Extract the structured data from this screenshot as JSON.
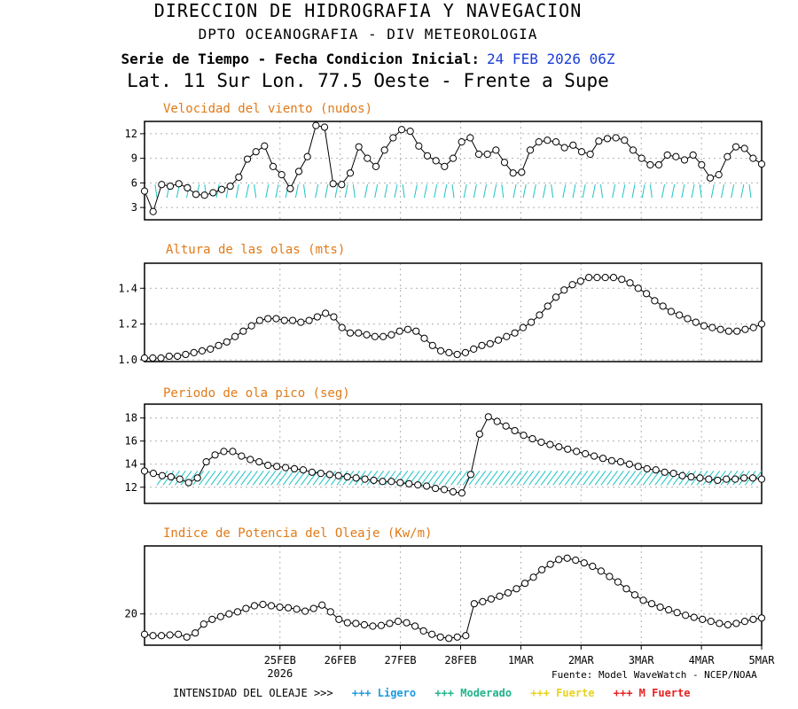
{
  "header": {
    "line1": "DIRECCION DE HIDROGRAFIA Y NAVEGACION",
    "line2": "DPTO OCEANOGRAFIA - DIV METEOROLOGIA",
    "line3_label": "Serie de Tiempo - Fecha Condicion Inicial:",
    "line3_date": "24 FEB 2026 06Z",
    "line4": "Lat. 11 Sur  Lon. 77.5 Oeste - Frente a Supe",
    "date_color": "#1a3cd8"
  },
  "source": "Fuente: Model WaveWatch - NCEP/NOAA",
  "legend": {
    "intro": "INTENSIDAD DEL OLEAJE >>>",
    "items": [
      {
        "label": "+++ Ligero",
        "color": "#1e9be0"
      },
      {
        "label": "+++ Moderado",
        "color": "#1fb38a"
      },
      {
        "label": "+++ Fuerte",
        "color": "#e8d21c"
      },
      {
        "label": "+++ M Fuerte",
        "color": "#e82020"
      }
    ]
  },
  "colors": {
    "title": "#e07a18",
    "arrows": "#1fc4c4",
    "line": "#000000",
    "grid": "#b0b0b0"
  },
  "chart_data": [
    {
      "type": "line",
      "title": "Velocidad del viento (nudos)",
      "x": [
        "24FEB06",
        "24FEB09",
        "24FEB12",
        "24FEB15",
        "24FEB18",
        "24FEB21",
        "25FEB00",
        "25FEB03",
        "25FEB06",
        "25FEB09",
        "25FEB12",
        "25FEB15",
        "25FEB18",
        "25FEB21",
        "26FEB00",
        "26FEB03",
        "26FEB06",
        "26FEB09",
        "26FEB12",
        "26FEB15",
        "26FEB18",
        "26FEB21",
        "27FEB00",
        "27FEB03",
        "27FEB06",
        "27FEB09",
        "27FEB12",
        "27FEB15",
        "27FEB18",
        "27FEB21",
        "28FEB00",
        "28FEB03",
        "28FEB06",
        "28FEB09",
        "28FEB12",
        "28FEB15",
        "28FEB18",
        "28FEB21",
        "01MAR00",
        "01MAR03",
        "01MAR06",
        "01MAR09",
        "01MAR12",
        "01MAR15",
        "01MAR18",
        "01MAR21",
        "02MAR00",
        "02MAR03",
        "02MAR06",
        "02MAR09",
        "02MAR12",
        "02MAR15",
        "02MAR18",
        "02MAR21",
        "03MAR00",
        "03MAR03",
        "03MAR06",
        "03MAR09",
        "03MAR12",
        "03MAR15",
        "03MAR18",
        "03MAR21",
        "04MAR00",
        "04MAR03",
        "04MAR06",
        "04MAR09",
        "04MAR12",
        "04MAR15",
        "04MAR18",
        "04MAR21",
        "05MAR00",
        "05MAR03",
        "05MAR06"
      ],
      "values": [
        5.0,
        2.5,
        5.8,
        5.6,
        5.9,
        5.4,
        4.6,
        4.5,
        4.8,
        5.2,
        5.6,
        6.7,
        8.9,
        9.8,
        10.5,
        8.0,
        7.0,
        5.3,
        7.4,
        9.2,
        13.0,
        12.8,
        5.9,
        5.8,
        7.2,
        10.4,
        9.0,
        8.0,
        10.0,
        11.5,
        12.5,
        12.3,
        10.5,
        9.3,
        8.7,
        8.0,
        9.0,
        11.0,
        11.5,
        9.5,
        9.5,
        10.0,
        8.5,
        7.2,
        7.3,
        10.0,
        11.0,
        11.2,
        11.0,
        10.3,
        10.6,
        9.8,
        9.5,
        11.1,
        11.4,
        11.5,
        11.2,
        10.0,
        9.0,
        8.2,
        8.2,
        9.4,
        9.2,
        8.8,
        9.4,
        8.2,
        6.6,
        7.0,
        9.2,
        10.4,
        10.2,
        9.0,
        8.3
      ],
      "xticks": [
        "25FEB",
        "26FEB",
        "27FEB",
        "28FEB",
        "1MAR",
        "2MAR",
        "3MAR",
        "4MAR",
        "5MAR"
      ],
      "xtick_year": "2026",
      "yticks": [
        3,
        6,
        9,
        12
      ],
      "ylim": [
        1.5,
        13.5
      ],
      "arrows": {
        "level": 5.0
      }
    },
    {
      "type": "line",
      "title": "Altura de las olas (mts)",
      "values": [
        1.01,
        1.01,
        1.01,
        1.02,
        1.02,
        1.03,
        1.04,
        1.05,
        1.06,
        1.08,
        1.1,
        1.13,
        1.16,
        1.19,
        1.22,
        1.23,
        1.23,
        1.22,
        1.22,
        1.21,
        1.22,
        1.24,
        1.26,
        1.24,
        1.18,
        1.15,
        1.15,
        1.14,
        1.13,
        1.13,
        1.14,
        1.16,
        1.17,
        1.16,
        1.12,
        1.08,
        1.05,
        1.04,
        1.03,
        1.04,
        1.06,
        1.08,
        1.09,
        1.11,
        1.13,
        1.15,
        1.18,
        1.21,
        1.25,
        1.3,
        1.35,
        1.39,
        1.42,
        1.44,
        1.46,
        1.46,
        1.46,
        1.46,
        1.45,
        1.43,
        1.4,
        1.37,
        1.33,
        1.3,
        1.27,
        1.25,
        1.23,
        1.21,
        1.19,
        1.18,
        1.17,
        1.16,
        1.16,
        1.17,
        1.18,
        1.2
      ],
      "yticks": [
        "1.0",
        "1.2",
        "1.4"
      ],
      "ylim": [
        0.99,
        1.54
      ]
    },
    {
      "type": "line",
      "title": "Periodo de ola pico (seg)",
      "values": [
        13.4,
        13.2,
        13.0,
        12.9,
        12.7,
        12.4,
        12.8,
        14.2,
        14.8,
        15.1,
        15.1,
        14.7,
        14.4,
        14.2,
        13.9,
        13.8,
        13.7,
        13.6,
        13.5,
        13.3,
        13.2,
        13.1,
        13.0,
        12.9,
        12.8,
        12.7,
        12.6,
        12.5,
        12.5,
        12.4,
        12.3,
        12.2,
        12.1,
        11.9,
        11.8,
        11.6,
        11.5,
        13.1,
        16.6,
        18.1,
        17.7,
        17.3,
        16.9,
        16.5,
        16.2,
        15.9,
        15.7,
        15.5,
        15.3,
        15.1,
        14.9,
        14.7,
        14.5,
        14.3,
        14.2,
        14.0,
        13.8,
        13.6,
        13.5,
        13.3,
        13.2,
        13.0,
        12.9,
        12.8,
        12.7,
        12.6,
        12.7,
        12.7,
        12.8,
        12.8,
        12.7
      ],
      "yticks": [
        12,
        14,
        16,
        18
      ],
      "ylim": [
        10.6,
        19.2
      ],
      "arrows": {
        "level": 12.8
      }
    },
    {
      "type": "line",
      "title": "Indice de Potencia del Oleaje (Kw/m)",
      "values": [
        17.0,
        16.8,
        16.8,
        16.9,
        17.0,
        16.6,
        17.2,
        18.5,
        19.2,
        19.6,
        20.0,
        20.3,
        20.8,
        21.2,
        21.4,
        21.2,
        21.0,
        20.9,
        20.7,
        20.4,
        20.8,
        21.3,
        20.3,
        19.2,
        18.7,
        18.6,
        18.4,
        18.2,
        18.3,
        18.6,
        18.9,
        18.7,
        18.2,
        17.5,
        17.0,
        16.6,
        16.4,
        16.6,
        16.8,
        21.5,
        21.8,
        22.2,
        22.6,
        23.1,
        23.7,
        24.5,
        25.4,
        26.5,
        27.3,
        28.0,
        28.2,
        27.9,
        27.5,
        27.0,
        26.3,
        25.5,
        24.7,
        23.7,
        22.8,
        22.0,
        21.5,
        21.0,
        20.6,
        20.2,
        19.8,
        19.5,
        19.2,
        18.9,
        18.6,
        18.4,
        18.6,
        18.9,
        19.2,
        19.4
      ],
      "yticks": [
        20
      ],
      "ylim": [
        15.4,
        30.0
      ]
    }
  ]
}
